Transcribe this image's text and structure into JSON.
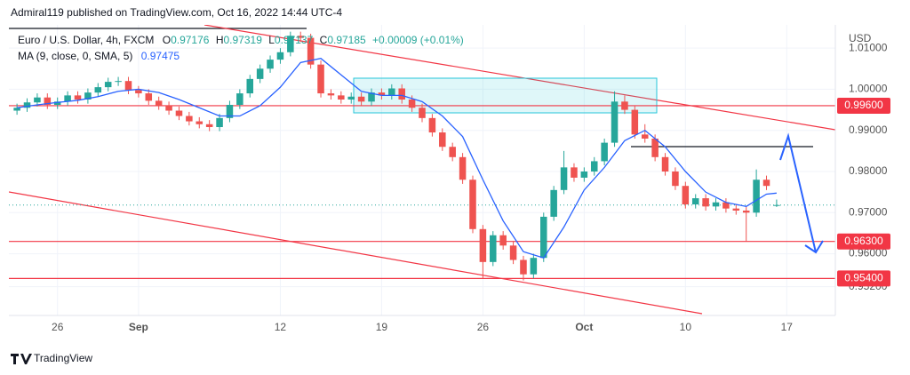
{
  "header": "Admiral119 published on TradingView.com, Oct 16, 2022 14:44 UTC-4",
  "footer": "TradingView",
  "chart_data": {
    "type": "candlestick",
    "symbol": "Euro / U.S. Dollar, 4h, FXCM",
    "ohlc_prefixes": [
      "O",
      "H",
      "L",
      "C"
    ],
    "change": "+0.00009 (+0.01%)",
    "axis_unit": "USD",
    "up_color": "#26a69a",
    "down_color": "#ef5350",
    "grid": true,
    "xlim": [
      -2.4,
      38.4
    ],
    "ylim": [
      0.945,
      1.01565
    ],
    "xticks": [
      {
        "value": 0,
        "label": "26"
      },
      {
        "value": 4,
        "label": "Sep"
      },
      {
        "value": 11,
        "label": "12"
      },
      {
        "value": 16,
        "label": "19"
      },
      {
        "value": 21,
        "label": "26"
      },
      {
        "value": 26,
        "label": "Oct"
      },
      {
        "value": 31,
        "label": "10"
      },
      {
        "value": 36,
        "label": "17"
      }
    ],
    "yticks": [
      {
        "value": 1.01,
        "label": "1.01000"
      },
      {
        "value": 1.0,
        "label": "1.00000"
      },
      {
        "value": 0.99,
        "label": "0.99000"
      },
      {
        "value": 0.98,
        "label": "0.98000"
      },
      {
        "value": 0.97,
        "label": "0.97000"
      },
      {
        "value": 0.96,
        "label": "0.96000"
      },
      {
        "value": 0.952,
        "label": "0.95200"
      }
    ],
    "levels": [
      {
        "value": 0.996,
        "label": "0.99600"
      },
      {
        "value": 0.963,
        "label": "0.96300"
      },
      {
        "value": 0.954,
        "label": "0.95400"
      }
    ],
    "level_color": "#f23645",
    "candles": {
      "x": [
        -2,
        -1.5,
        -1,
        -0.5,
        0,
        0.5,
        1,
        1.5,
        2,
        2.5,
        3,
        3.5,
        4,
        4.5,
        5,
        5.5,
        6,
        6.5,
        7,
        7.5,
        8,
        8.5,
        9,
        9.5,
        10,
        10.5,
        11,
        11.5,
        12,
        12.5,
        13,
        13.5,
        14,
        14.5,
        15,
        15.5,
        16,
        16.5,
        17,
        17.5,
        18,
        18.5,
        19,
        19.5,
        20,
        20.5,
        21,
        21.5,
        22,
        22.5,
        23,
        23.5,
        24,
        24.5,
        25,
        25.5,
        26,
        26.5,
        27,
        27.5,
        28,
        28.5,
        29,
        29.5,
        30,
        30.5,
        31,
        31.5,
        32,
        32.5,
        33,
        33.5,
        34,
        34.5,
        35,
        35.5
      ],
      "open": [
        0.9948,
        0.9955,
        0.9968,
        0.998,
        0.9962,
        0.997,
        0.9985,
        0.9975,
        0.9992,
        1.0005,
        1.0018,
        1.002,
        0.9998,
        0.999,
        0.9972,
        0.996,
        0.9948,
        0.9935,
        0.9922,
        0.9915,
        0.9908,
        0.993,
        0.9962,
        0.999,
        1.0025,
        1.005,
        1.0072,
        1.009,
        1.013,
        1.0125,
        1.006,
        0.999,
        0.9985,
        0.9975,
        0.9982,
        0.997,
        0.9992,
        0.9985,
        1.0002,
        0.9975,
        0.9955,
        0.993,
        0.9895,
        0.986,
        0.9835,
        0.978,
        0.966,
        0.958,
        0.9645,
        0.962,
        0.9585,
        0.955,
        0.959,
        0.969,
        0.9755,
        0.981,
        0.9785,
        0.98,
        0.9825,
        0.987,
        0.997,
        0.995,
        0.989,
        0.988,
        0.9835,
        0.98,
        0.9765,
        0.972,
        0.9735,
        0.9715,
        0.9725,
        0.971,
        0.9705,
        0.97,
        0.978,
        0.97176
      ],
      "high": [
        0.9965,
        0.9978,
        0.999,
        0.999,
        0.998,
        0.9995,
        0.9995,
        1.0002,
        1.0015,
        1.0028,
        1.003,
        1.003,
        1.0008,
        1.0,
        0.9982,
        0.997,
        0.9958,
        0.9945,
        0.9932,
        0.9925,
        0.994,
        0.9972,
        1.0,
        1.0035,
        1.006,
        1.0082,
        1.01,
        1.014,
        1.014,
        1.0135,
        1.007,
        1.0,
        0.9995,
        0.9992,
        0.9992,
        1.0002,
        1.0002,
        1.0012,
        1.0012,
        0.9985,
        0.9965,
        0.994,
        0.9905,
        0.987,
        0.9845,
        0.979,
        0.967,
        0.9655,
        0.9655,
        0.963,
        0.9595,
        0.96,
        0.97,
        0.9765,
        0.985,
        0.982,
        0.981,
        0.9835,
        0.988,
        0.9995,
        0.9985,
        0.996,
        0.9915,
        0.989,
        0.9845,
        0.981,
        0.9775,
        0.9745,
        0.9745,
        0.9735,
        0.9735,
        0.972,
        0.9715,
        0.9805,
        0.979,
        0.97319
      ],
      "low": [
        0.9938,
        0.9945,
        0.9958,
        0.9952,
        0.9952,
        0.996,
        0.9965,
        0.9965,
        0.9982,
        0.9995,
        1.0008,
        0.9988,
        0.998,
        0.9962,
        0.995,
        0.9938,
        0.9925,
        0.9912,
        0.9905,
        0.9898,
        0.9898,
        0.992,
        0.9952,
        0.998,
        1.0015,
        1.004,
        1.0062,
        1.008,
        1.0115,
        1.005,
        0.998,
        0.9975,
        0.9965,
        0.9965,
        0.996,
        0.996,
        0.9975,
        0.9975,
        0.9965,
        0.9945,
        0.992,
        0.9885,
        0.985,
        0.9825,
        0.977,
        0.965,
        0.954,
        0.957,
        0.961,
        0.9575,
        0.9535,
        0.954,
        0.958,
        0.968,
        0.9745,
        0.9775,
        0.9775,
        0.979,
        0.9815,
        0.986,
        0.994,
        0.988,
        0.987,
        0.9825,
        0.979,
        0.9755,
        0.971,
        0.971,
        0.9705,
        0.9705,
        0.97,
        0.9695,
        0.963,
        0.969,
        0.9755,
        0.97137
      ],
      "close": [
        0.9955,
        0.9968,
        0.998,
        0.9962,
        0.997,
        0.9985,
        0.9975,
        0.9992,
        1.0005,
        1.0018,
        1.002,
        0.9998,
        0.999,
        0.9972,
        0.996,
        0.9948,
        0.9935,
        0.9922,
        0.9915,
        0.9908,
        0.993,
        0.9962,
        0.999,
        1.0025,
        1.005,
        1.0072,
        1.009,
        1.013,
        1.0125,
        1.006,
        0.999,
        0.9985,
        0.9975,
        0.9982,
        0.997,
        0.9992,
        0.9985,
        1.0002,
        0.9975,
        0.9955,
        0.993,
        0.9895,
        0.986,
        0.9835,
        0.978,
        0.966,
        0.958,
        0.9645,
        0.962,
        0.9585,
        0.955,
        0.959,
        0.969,
        0.9755,
        0.981,
        0.9785,
        0.98,
        0.9825,
        0.987,
        0.997,
        0.995,
        0.989,
        0.988,
        0.9835,
        0.98,
        0.9765,
        0.972,
        0.9735,
        0.9715,
        0.9725,
        0.971,
        0.9705,
        0.97,
        0.978,
        0.9765,
        0.97185
      ]
    },
    "ma": {
      "name": "MA (9, close, 0, SMA, 5)",
      "color": "#2962ff",
      "x": [
        -2,
        -1,
        0,
        1,
        2,
        3,
        4,
        5,
        6,
        7,
        8,
        9,
        10,
        11,
        12,
        13,
        14,
        15,
        16,
        17,
        18,
        19,
        20,
        21,
        22,
        23,
        24,
        25,
        26,
        27,
        28,
        29,
        30,
        31,
        32,
        33,
        34,
        35,
        35.5
      ],
      "values": [
        0.9955,
        0.9962,
        0.9968,
        0.9973,
        0.9982,
        0.9995,
        1.0,
        0.9992,
        0.9975,
        0.9955,
        0.9935,
        0.9935,
        0.996,
        1.0005,
        1.0065,
        1.0075,
        1.0035,
        0.9995,
        0.9985,
        0.9985,
        0.997,
        0.9935,
        0.9885,
        0.978,
        0.968,
        0.9605,
        0.959,
        0.9665,
        0.9755,
        0.981,
        0.9875,
        0.99,
        0.986,
        0.98,
        0.975,
        0.9725,
        0.9715,
        0.9745,
        0.97475
      ]
    }
  }
}
